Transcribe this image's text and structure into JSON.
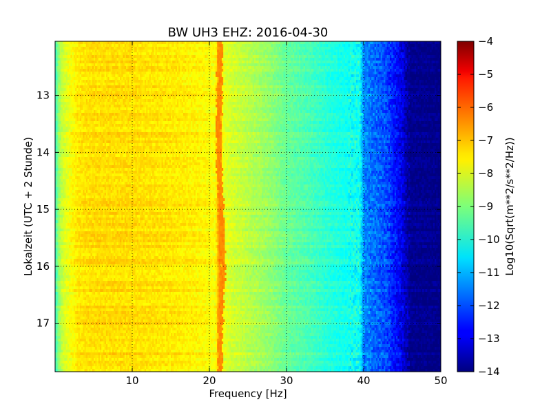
{
  "chart_data": {
    "type": "heatmap",
    "title": "BW UH3 EHZ: 2016-04-30",
    "xlabel": "Frequency [Hz]",
    "ylabel": "Lokalzeit (UTC + 2 Stunde)",
    "xlim": [
      0,
      50
    ],
    "ylim": [
      17.85,
      12.05
    ],
    "y_inverted": true,
    "x_ticks": [
      10,
      20,
      30,
      40,
      50
    ],
    "x_tick_labels": [
      "10",
      "20",
      "30",
      "40",
      "50"
    ],
    "y_ticks": [
      13,
      14,
      15,
      16,
      17
    ],
    "y_tick_labels": [
      "13",
      "14",
      "15",
      "16",
      "17"
    ],
    "grid": true,
    "colormap": "jet",
    "colorbar": {
      "label": "Log10(Sqrt(m**2/s**2/Hz))",
      "range": [
        -14,
        -4
      ],
      "ticks": [
        -4,
        -5,
        -6,
        -7,
        -8,
        -9,
        -10,
        -11,
        -12,
        -13,
        -14
      ],
      "tick_labels": [
        "−4",
        "−5",
        "−6",
        "−7",
        "−8",
        "−9",
        "−10",
        "−11",
        "−12",
        "−13",
        "−14"
      ]
    },
    "frequency_profile": {
      "freq_hz": [
        0,
        0.5,
        1,
        2,
        3,
        5,
        8,
        10,
        12,
        15,
        18,
        20,
        20.8,
        21.3,
        21.8,
        22.5,
        25,
        28,
        30,
        33,
        35,
        37,
        39.5,
        40,
        42,
        43,
        44,
        45,
        46,
        50
      ],
      "log10_amplitude": [
        -9.8,
        -8.7,
        -8.2,
        -7.8,
        -7.5,
        -7.4,
        -7.4,
        -7.4,
        -7.45,
        -7.5,
        -7.6,
        -7.7,
        -7.8,
        -6.6,
        -7.9,
        -8.1,
        -8.4,
        -8.8,
        -9.2,
        -9.5,
        -9.8,
        -10.0,
        -10.1,
        -11.4,
        -11.8,
        -12.0,
        -12.5,
        -13.0,
        -13.8,
        -13.9
      ]
    },
    "narrowband_line": {
      "freq_hz_by_hour": [
        [
          12.05,
          21.4
        ],
        [
          14.0,
          21.2
        ],
        [
          15.0,
          21.5
        ],
        [
          16.0,
          21.8
        ],
        [
          17.0,
          21.4
        ],
        [
          17.85,
          21.4
        ]
      ],
      "log10_amplitude": -6.6
    }
  }
}
